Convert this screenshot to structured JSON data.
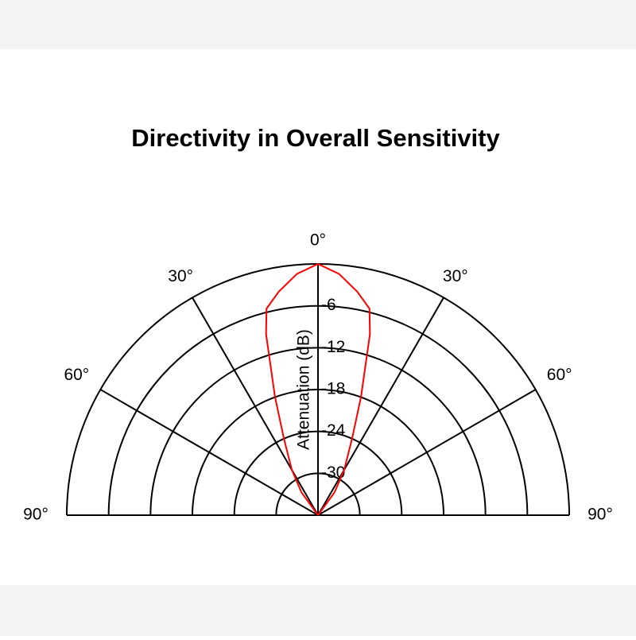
{
  "chart_data": {
    "type": "polar-half",
    "title": "Directivity in Overall Sensitivity",
    "r_label": "Attenuation (dB)",
    "x": [
      -45,
      -36,
      -30,
      -24,
      -20,
      -17,
      -16,
      -14,
      -10,
      -5,
      0,
      5,
      10,
      14,
      16,
      17,
      20,
      24,
      30,
      36,
      45
    ],
    "series": [
      {
        "color": "#ff0000",
        "values": [
          -36,
          -32,
          -28.5,
          -24,
          -18,
          -12,
          -9,
          -5.5,
          -3.5,
          -1.3,
          0,
          -1.3,
          -3.5,
          -5.5,
          -9,
          -12,
          -18,
          -24,
          -28.5,
          -32,
          -36
        ]
      }
    ],
    "rlim": [
      -36,
      0
    ],
    "rticks": [
      -6,
      -12,
      -18,
      -24,
      -30
    ],
    "thetalim": [
      -90,
      90
    ],
    "thetaticks": [
      {
        "value": -90,
        "label": "90°"
      },
      {
        "value": -60,
        "label": "60°"
      },
      {
        "value": -30,
        "label": "30°"
      },
      {
        "value": 0,
        "label": "0°"
      },
      {
        "value": 30,
        "label": "30°"
      },
      {
        "value": 60,
        "label": "60°"
      },
      {
        "value": 90,
        "label": "90°"
      }
    ],
    "grid": true
  }
}
